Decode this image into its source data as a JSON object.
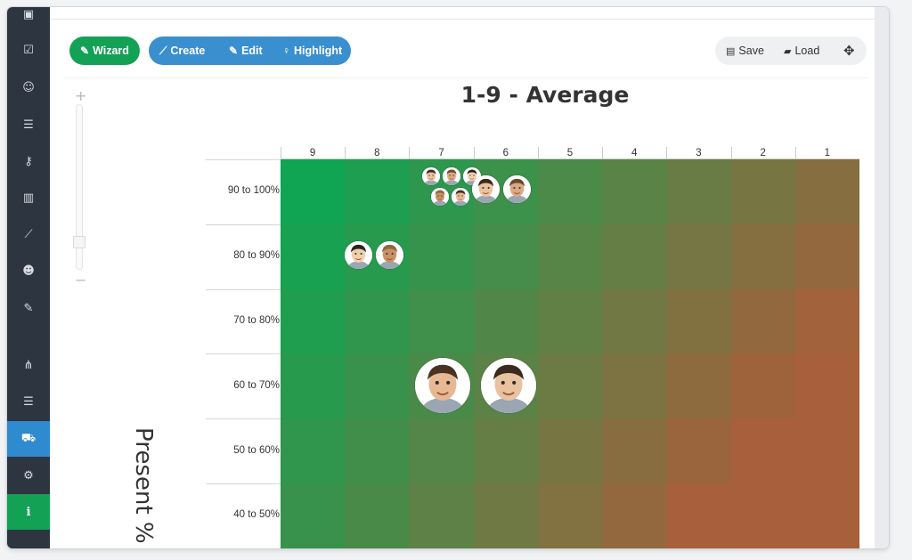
{
  "sidebar": {
    "items": [
      {
        "icon": "book-icon",
        "glyph": "▣"
      },
      {
        "icon": "checkbox-icon",
        "glyph": "☑"
      },
      {
        "icon": "smile-icon",
        "glyph": "☺"
      },
      {
        "icon": "list-icon",
        "glyph": "☰"
      },
      {
        "icon": "key-icon",
        "glyph": "⚷"
      },
      {
        "icon": "bar-chart-icon",
        "glyph": "▥"
      },
      {
        "icon": "line-chart-icon",
        "glyph": "⟋"
      },
      {
        "icon": "users-icon",
        "glyph": "☻"
      },
      {
        "icon": "edit-icon",
        "glyph": "✎"
      },
      {
        "icon": "sitemap-icon",
        "glyph": "⋔"
      },
      {
        "icon": "table-icon",
        "glyph": "☰"
      },
      {
        "icon": "cart-icon",
        "glyph": "⛟"
      },
      {
        "icon": "cogs-icon",
        "glyph": "⚙"
      },
      {
        "icon": "info-icon",
        "glyph": "i"
      }
    ],
    "active_item": "cart-icon"
  },
  "toolbar": {
    "wizard_label": "Wizard",
    "create_label": "Create",
    "edit_label": "Edit",
    "highlight_label": "Highlight",
    "save_label": "Save",
    "load_label": "Load"
  },
  "chart": {
    "title": "1-9 - Average",
    "ylabel": "Present %",
    "columns": [
      "9",
      "8",
      "7",
      "6",
      "5",
      "4",
      "3",
      "2",
      "1"
    ],
    "rows": [
      "90 to 100%",
      "80 to 90%",
      "70 to 80%",
      "60 to 70%",
      "50 to 60%",
      "40 to 50%"
    ]
  },
  "colors": {
    "wizard": "#13a155",
    "button_group": "#3a8fcf",
    "sidebar": "#2d3540",
    "sidebar_active": "#2f8ad0",
    "grid_best": "#0fa552",
    "grid_worst": "#a85f3b"
  },
  "students": [
    {
      "column": "7",
      "row": "90 to 100%",
      "size": "small"
    },
    {
      "column": "7",
      "row": "90 to 100%",
      "size": "small"
    },
    {
      "column": "7",
      "row": "90 to 100%",
      "size": "small"
    },
    {
      "column": "7",
      "row": "90 to 100%",
      "size": "small"
    },
    {
      "column": "7",
      "row": "90 to 100%",
      "size": "small"
    },
    {
      "column": "6",
      "row": "90 to 100%",
      "size": "medium"
    },
    {
      "column": "6",
      "row": "90 to 100%",
      "size": "medium"
    },
    {
      "column": "8",
      "row": "80 to 90%",
      "size": "medium"
    },
    {
      "column": "8",
      "row": "80 to 90%",
      "size": "medium"
    },
    {
      "column": "7",
      "row": "60 to 70%",
      "size": "large"
    },
    {
      "column": "6",
      "row": "60 to 70%",
      "size": "large"
    }
  ]
}
